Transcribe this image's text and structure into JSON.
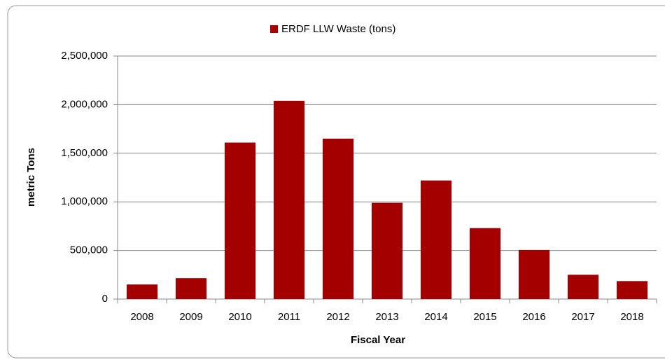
{
  "chart_data": {
    "type": "bar",
    "legend": "ERDF LLW Waste (tons)",
    "x_label": "Fiscal Year",
    "y_label": "metric Tons",
    "categories": [
      "2008",
      "2009",
      "2010",
      "2011",
      "2012",
      "2013",
      "2014",
      "2015",
      "2016",
      "2017",
      "2018"
    ],
    "values": [
      150000,
      215000,
      1610000,
      2040000,
      1650000,
      990000,
      1220000,
      730000,
      505000,
      250000,
      185000
    ],
    "color": "#a50000",
    "ylim": [
      0,
      2500000
    ],
    "yticks": [
      0,
      {
        "value": 500000,
        "label": "500,000"
      },
      {
        "value": 1000000,
        "label": "1,000,000"
      },
      {
        "value": 1500000,
        "label": "1,500,000"
      },
      {
        "value": 2000000,
        "label": "2,000,000"
      },
      {
        "value": 2500000,
        "label": "2,500,000"
      }
    ],
    "grid": true
  }
}
